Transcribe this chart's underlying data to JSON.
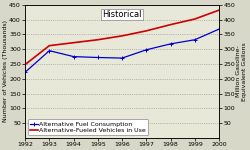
{
  "years": [
    1992,
    1993,
    1994,
    1995,
    1996,
    1997,
    1998,
    1999,
    2000
  ],
  "fuel_consumption": [
    222,
    295,
    275,
    272,
    270,
    298,
    318,
    332,
    368
  ],
  "vehicles_in_use": [
    248,
    312,
    322,
    332,
    345,
    362,
    383,
    402,
    432
  ],
  "title": "Historical",
  "ylabel_left": "Number of Vehicles (Thousands)",
  "ylabel_right": "Million Gasoline-\nEquivalent Gallons",
  "legend_fuel": "Alternative Fuel Consumption",
  "legend_vehicles": "Alternative-Fueled Vehicles in Use",
  "ylim": [
    0,
    450
  ],
  "yticks": [
    50,
    100,
    150,
    200,
    250,
    300,
    350,
    400,
    450
  ],
  "fuel_color": "#0000cc",
  "vehicles_color": "#cc0000",
  "bg_color": "#d8d8c8",
  "plot_bg": "#e8e8d8",
  "grid_color": "#888888",
  "vline_x": 2000,
  "title_fontsize": 6,
  "label_fontsize": 4.5,
  "tick_fontsize": 4.5,
  "legend_fontsize": 4.5
}
